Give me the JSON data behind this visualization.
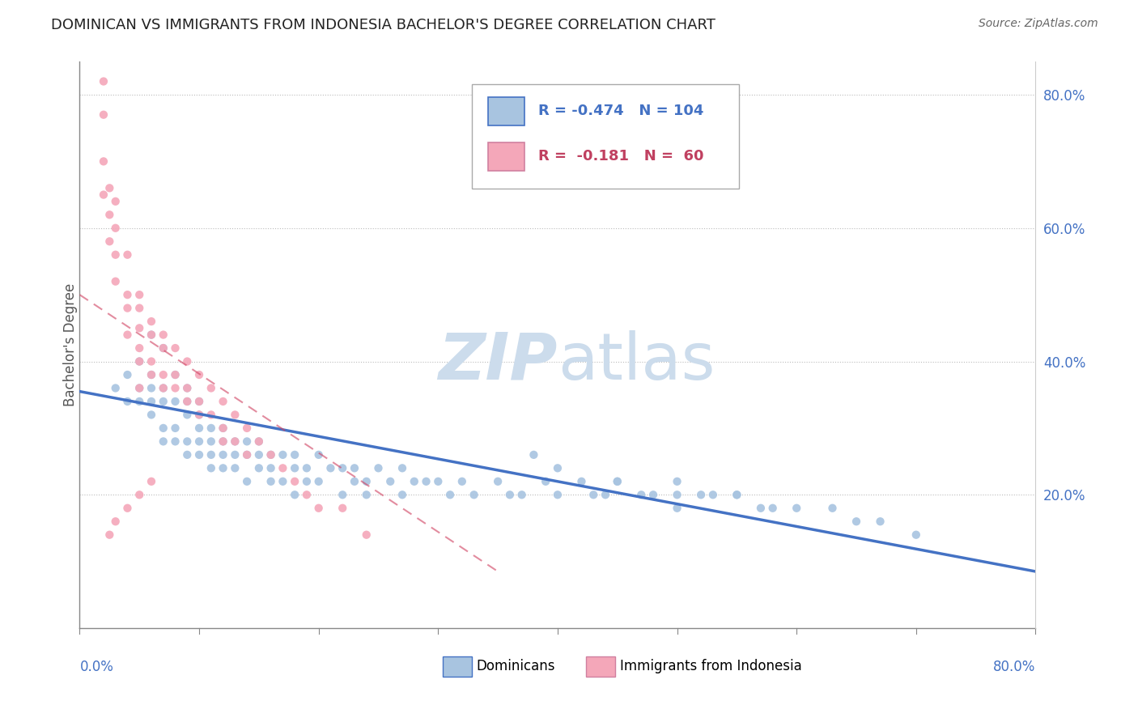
{
  "title": "DOMINICAN VS IMMIGRANTS FROM INDONESIA BACHELOR'S DEGREE CORRELATION CHART",
  "source": "Source: ZipAtlas.com",
  "ylabel": "Bachelor's Degree",
  "legend_blue_label": "Dominicans",
  "legend_pink_label": "Immigrants from Indonesia",
  "R_blue": -0.474,
  "N_blue": 104,
  "R_pink": -0.181,
  "N_pink": 60,
  "color_blue": "#a8c4e0",
  "color_blue_line": "#4472c4",
  "color_pink": "#f4a7b9",
  "color_pink_line": "#d04060",
  "color_text_blue": "#4472c4",
  "color_text_pink": "#c04060",
  "watermark_color": "#ccdcec",
  "blue_line_x0": 0.0,
  "blue_line_y0": 0.355,
  "blue_line_x1": 0.8,
  "blue_line_y1": 0.085,
  "pink_line_x0": 0.0,
  "pink_line_y0": 0.5,
  "pink_line_x1": 0.35,
  "pink_line_y1": 0.085,
  "xlim": [
    0.0,
    0.8
  ],
  "ylim": [
    0.0,
    0.85
  ],
  "blue_scatter_x": [
    0.03,
    0.04,
    0.04,
    0.05,
    0.05,
    0.05,
    0.06,
    0.06,
    0.06,
    0.06,
    0.06,
    0.07,
    0.07,
    0.07,
    0.07,
    0.07,
    0.08,
    0.08,
    0.08,
    0.08,
    0.09,
    0.09,
    0.09,
    0.09,
    0.09,
    0.1,
    0.1,
    0.1,
    0.1,
    0.1,
    0.11,
    0.11,
    0.11,
    0.11,
    0.12,
    0.12,
    0.12,
    0.12,
    0.13,
    0.13,
    0.13,
    0.14,
    0.14,
    0.14,
    0.15,
    0.15,
    0.15,
    0.16,
    0.16,
    0.16,
    0.17,
    0.17,
    0.18,
    0.18,
    0.18,
    0.19,
    0.19,
    0.2,
    0.2,
    0.21,
    0.22,
    0.22,
    0.23,
    0.23,
    0.24,
    0.24,
    0.25,
    0.26,
    0.27,
    0.27,
    0.28,
    0.29,
    0.3,
    0.31,
    0.32,
    0.33,
    0.35,
    0.36,
    0.37,
    0.39,
    0.4,
    0.42,
    0.43,
    0.44,
    0.45,
    0.47,
    0.48,
    0.5,
    0.5,
    0.52,
    0.53,
    0.55,
    0.57,
    0.58,
    0.6,
    0.63,
    0.65,
    0.67,
    0.7,
    0.4,
    0.45,
    0.5,
    0.55,
    0.38
  ],
  "blue_scatter_y": [
    0.36,
    0.38,
    0.34,
    0.4,
    0.36,
    0.34,
    0.38,
    0.36,
    0.34,
    0.32,
    0.44,
    0.36,
    0.34,
    0.3,
    0.28,
    0.42,
    0.34,
    0.3,
    0.28,
    0.38,
    0.34,
    0.32,
    0.28,
    0.26,
    0.36,
    0.32,
    0.3,
    0.28,
    0.26,
    0.34,
    0.3,
    0.28,
    0.26,
    0.24,
    0.3,
    0.28,
    0.26,
    0.24,
    0.28,
    0.26,
    0.24,
    0.28,
    0.26,
    0.22,
    0.28,
    0.26,
    0.24,
    0.26,
    0.24,
    0.22,
    0.26,
    0.22,
    0.26,
    0.24,
    0.2,
    0.24,
    0.22,
    0.26,
    0.22,
    0.24,
    0.24,
    0.2,
    0.24,
    0.22,
    0.22,
    0.2,
    0.24,
    0.22,
    0.24,
    0.2,
    0.22,
    0.22,
    0.22,
    0.2,
    0.22,
    0.2,
    0.22,
    0.2,
    0.2,
    0.22,
    0.2,
    0.22,
    0.2,
    0.2,
    0.22,
    0.2,
    0.2,
    0.22,
    0.18,
    0.2,
    0.2,
    0.2,
    0.18,
    0.18,
    0.18,
    0.18,
    0.16,
    0.16,
    0.14,
    0.24,
    0.22,
    0.2,
    0.2,
    0.26
  ],
  "pink_scatter_x": [
    0.02,
    0.02,
    0.02,
    0.02,
    0.025,
    0.025,
    0.025,
    0.03,
    0.03,
    0.03,
    0.03,
    0.04,
    0.04,
    0.04,
    0.04,
    0.05,
    0.05,
    0.05,
    0.05,
    0.05,
    0.05,
    0.06,
    0.06,
    0.06,
    0.06,
    0.07,
    0.07,
    0.07,
    0.07,
    0.08,
    0.08,
    0.08,
    0.09,
    0.09,
    0.09,
    0.1,
    0.1,
    0.1,
    0.11,
    0.11,
    0.12,
    0.12,
    0.12,
    0.13,
    0.13,
    0.14,
    0.14,
    0.15,
    0.16,
    0.17,
    0.18,
    0.19,
    0.2,
    0.22,
    0.24,
    0.025,
    0.03,
    0.04,
    0.05,
    0.06
  ],
  "pink_scatter_y": [
    0.82,
    0.77,
    0.7,
    0.65,
    0.66,
    0.62,
    0.58,
    0.64,
    0.6,
    0.56,
    0.52,
    0.56,
    0.5,
    0.48,
    0.44,
    0.5,
    0.48,
    0.45,
    0.42,
    0.4,
    0.36,
    0.46,
    0.44,
    0.4,
    0.38,
    0.44,
    0.42,
    0.38,
    0.36,
    0.42,
    0.38,
    0.36,
    0.4,
    0.36,
    0.34,
    0.38,
    0.34,
    0.32,
    0.36,
    0.32,
    0.34,
    0.3,
    0.28,
    0.32,
    0.28,
    0.3,
    0.26,
    0.28,
    0.26,
    0.24,
    0.22,
    0.2,
    0.18,
    0.18,
    0.14,
    0.14,
    0.16,
    0.18,
    0.2,
    0.22
  ]
}
